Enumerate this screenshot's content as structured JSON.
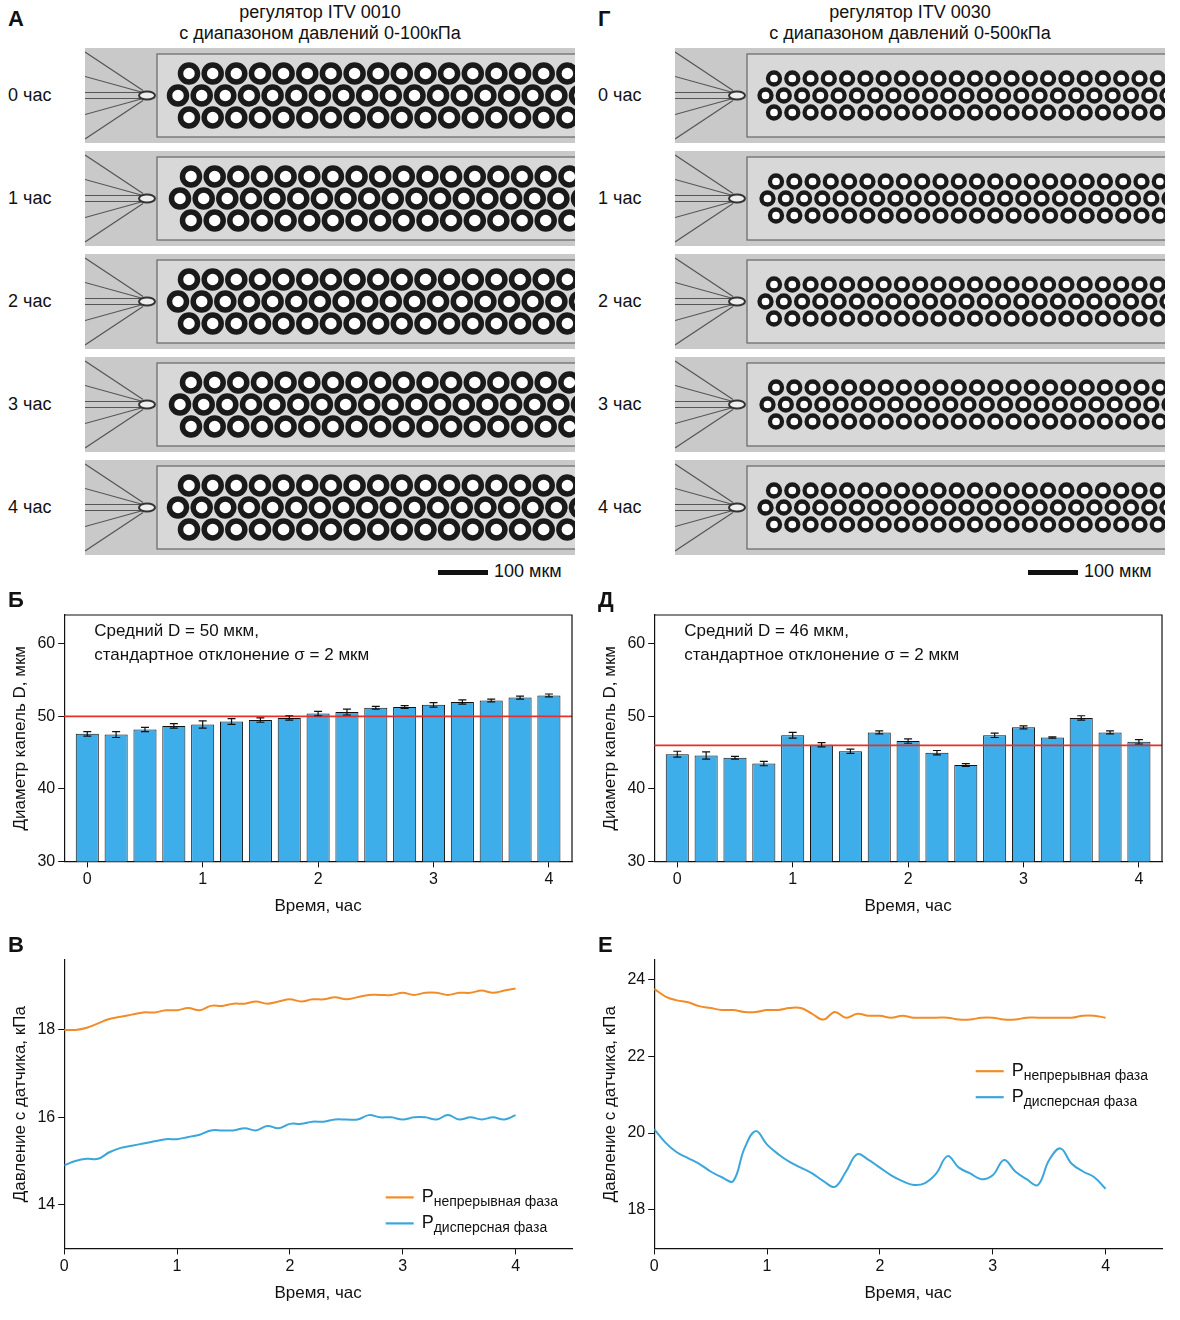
{
  "image_panels": [
    {
      "panel": "А",
      "title": "регулятор ITV 0010",
      "subtitle": "с диапазоном давлений 0-100кПа",
      "frames": [
        "0 час",
        "1 час",
        "2 час",
        "3 час",
        "4 час"
      ],
      "scale_bar": "100 мкм"
    },
    {
      "panel": "Г",
      "title": "регулятор ITV 0030",
      "subtitle": "с диапазоном давлений 0-500кПа",
      "frames": [
        "0 час",
        "1 час",
        "2 час",
        "3 час",
        "4 час"
      ],
      "scale_bar": "100 мкм"
    }
  ],
  "chart_data": [
    {
      "panel": "Б",
      "type": "bar",
      "annotation": [
        "Средний D = 50 мкм,",
        "стандартное отклонение σ = 2 мкм"
      ],
      "x": [
        0,
        0.25,
        0.5,
        0.75,
        1,
        1.25,
        1.5,
        1.75,
        2,
        2.25,
        2.5,
        2.75,
        3,
        3.25,
        3.5,
        3.75,
        4
      ],
      "values": [
        47.6,
        47.5,
        48.2,
        48.7,
        48.9,
        49.3,
        49.5,
        49.8,
        50.4,
        50.6,
        51.2,
        51.3,
        51.6,
        52.0,
        52.2,
        52.6,
        52.9
      ],
      "errors": [
        0.3,
        0.4,
        0.3,
        0.3,
        0.5,
        0.4,
        0.3,
        0.3,
        0.3,
        0.4,
        0.2,
        0.2,
        0.3,
        0.3,
        0.2,
        0.2,
        0.2
      ],
      "color": "#3daee9",
      "mean_line": {
        "value": 50,
        "color": "#e8302a"
      },
      "xlabel": "Время, час",
      "ylabel": "Диаметр капель D, мкм",
      "xlim": [
        -0.2,
        4.2
      ],
      "xticks": [
        0,
        1,
        2,
        3,
        4
      ],
      "ylim": [
        30,
        64
      ],
      "yticks": [
        30,
        40,
        50,
        60
      ],
      "grid": false
    },
    {
      "panel": "В",
      "type": "line",
      "x": [
        0,
        0.1,
        0.2,
        0.3,
        0.4,
        0.5,
        0.6,
        0.7,
        0.8,
        0.9,
        1,
        1.1,
        1.2,
        1.3,
        1.4,
        1.5,
        1.6,
        1.7,
        1.8,
        1.9,
        2,
        2.1,
        2.2,
        2.3,
        2.4,
        2.5,
        2.6,
        2.7,
        2.8,
        2.9,
        3,
        3.1,
        3.2,
        3.3,
        3.4,
        3.5,
        3.6,
        3.7,
        3.8,
        3.9,
        4
      ],
      "series": [
        {
          "name": "Pнепрерывная фаза",
          "color": "#f28c28",
          "values": [
            18.0,
            18.0,
            18.05,
            18.15,
            18.25,
            18.3,
            18.35,
            18.4,
            18.4,
            18.45,
            18.45,
            18.5,
            18.45,
            18.55,
            18.55,
            18.6,
            18.6,
            18.65,
            18.6,
            18.65,
            18.7,
            18.65,
            18.7,
            18.7,
            18.75,
            18.7,
            18.75,
            18.8,
            18.8,
            18.8,
            18.85,
            18.8,
            18.85,
            18.85,
            18.8,
            18.85,
            18.85,
            18.9,
            18.85,
            18.9,
            18.95
          ]
        },
        {
          "name": "Pдисперсная фаза",
          "color": "#3aa6dc",
          "values": [
            14.9,
            15.0,
            15.05,
            15.05,
            15.2,
            15.3,
            15.35,
            15.4,
            15.45,
            15.5,
            15.5,
            15.55,
            15.6,
            15.7,
            15.7,
            15.7,
            15.75,
            15.7,
            15.8,
            15.75,
            15.85,
            15.85,
            15.9,
            15.9,
            15.95,
            15.95,
            15.95,
            16.05,
            16.0,
            16.0,
            15.95,
            16.0,
            16.0,
            15.95,
            16.05,
            15.95,
            16.0,
            15.95,
            16.0,
            15.95,
            16.05
          ]
        }
      ],
      "xlabel": "Время, час",
      "ylabel": "Давление с датчика, кПа",
      "xlim": [
        0,
        4.5
      ],
      "xticks": [
        0,
        1,
        2,
        3,
        4
      ],
      "ylim": [
        13,
        19.6
      ],
      "yticks": [
        14,
        16,
        18
      ],
      "legend": "lower right",
      "grid": false
    },
    {
      "panel": "Д",
      "type": "bar",
      "annotation": [
        "Средний D = 46 мкм,",
        "стандартное отклонение σ = 2 мкм"
      ],
      "x": [
        0,
        0.25,
        0.5,
        0.75,
        1,
        1.25,
        1.5,
        1.75,
        2,
        2.25,
        2.5,
        2.75,
        3,
        3.25,
        3.5,
        3.75,
        4
      ],
      "values": [
        44.8,
        44.6,
        44.3,
        43.5,
        47.4,
        46.1,
        45.2,
        47.8,
        46.6,
        45.0,
        43.3,
        47.4,
        48.5,
        47.1,
        49.8,
        47.8,
        46.5
      ],
      "errors": [
        0.4,
        0.5,
        0.2,
        0.3,
        0.4,
        0.3,
        0.3,
        0.2,
        0.3,
        0.3,
        0.2,
        0.3,
        0.2,
        0.1,
        0.3,
        0.2,
        0.3
      ],
      "color": "#3daee9",
      "mean_line": {
        "value": 46,
        "color": "#e8302a"
      },
      "xlabel": "Время, час",
      "ylabel": "Диаметр капель D, мкм",
      "xlim": [
        -0.2,
        4.2
      ],
      "xticks": [
        0,
        1,
        2,
        3,
        4
      ],
      "ylim": [
        30,
        64
      ],
      "yticks": [
        30,
        40,
        50,
        60
      ],
      "grid": false
    },
    {
      "panel": "Е",
      "type": "line",
      "x": [
        0,
        0.1,
        0.2,
        0.3,
        0.4,
        0.5,
        0.6,
        0.7,
        0.8,
        0.9,
        1,
        1.1,
        1.2,
        1.3,
        1.4,
        1.5,
        1.6,
        1.7,
        1.8,
        1.9,
        2,
        2.1,
        2.2,
        2.3,
        2.4,
        2.5,
        2.6,
        2.7,
        2.8,
        2.9,
        3,
        3.1,
        3.2,
        3.3,
        3.4,
        3.5,
        3.6,
        3.7,
        3.8,
        3.9,
        4
      ],
      "series": [
        {
          "name": "Pнепрерывная фаза",
          "color": "#f28c28",
          "values": [
            23.75,
            23.55,
            23.45,
            23.4,
            23.3,
            23.25,
            23.2,
            23.2,
            23.15,
            23.15,
            23.2,
            23.2,
            23.25,
            23.25,
            23.1,
            22.95,
            23.15,
            23.0,
            23.1,
            23.05,
            23.05,
            23.0,
            23.05,
            23.0,
            23.0,
            23.0,
            23.0,
            22.95,
            22.95,
            23.0,
            23.0,
            22.95,
            22.95,
            23.0,
            23.0,
            23.0,
            23.0,
            23.0,
            23.05,
            23.05,
            23.0
          ]
        },
        {
          "name": "Pдисперсная фаза",
          "color": "#3aa6dc",
          "values": [
            20.1,
            19.75,
            19.5,
            19.35,
            19.2,
            19.0,
            18.85,
            18.75,
            19.6,
            20.05,
            19.7,
            19.45,
            19.25,
            19.1,
            18.95,
            18.75,
            18.6,
            19.0,
            19.45,
            19.3,
            19.1,
            18.9,
            18.75,
            18.65,
            18.7,
            18.95,
            19.4,
            19.1,
            18.95,
            18.8,
            18.9,
            19.3,
            19.0,
            18.8,
            18.65,
            19.3,
            19.6,
            19.2,
            19.0,
            18.85,
            18.55
          ]
        }
      ],
      "xlabel": "Время, час",
      "ylabel": "Давление с датчика, кПа",
      "xlim": [
        0,
        4.5
      ],
      "xticks": [
        0,
        1,
        2,
        3,
        4
      ],
      "ylim": [
        17,
        24.5
      ],
      "yticks": [
        18,
        20,
        22,
        24
      ],
      "legend": "right",
      "grid": false
    }
  ]
}
